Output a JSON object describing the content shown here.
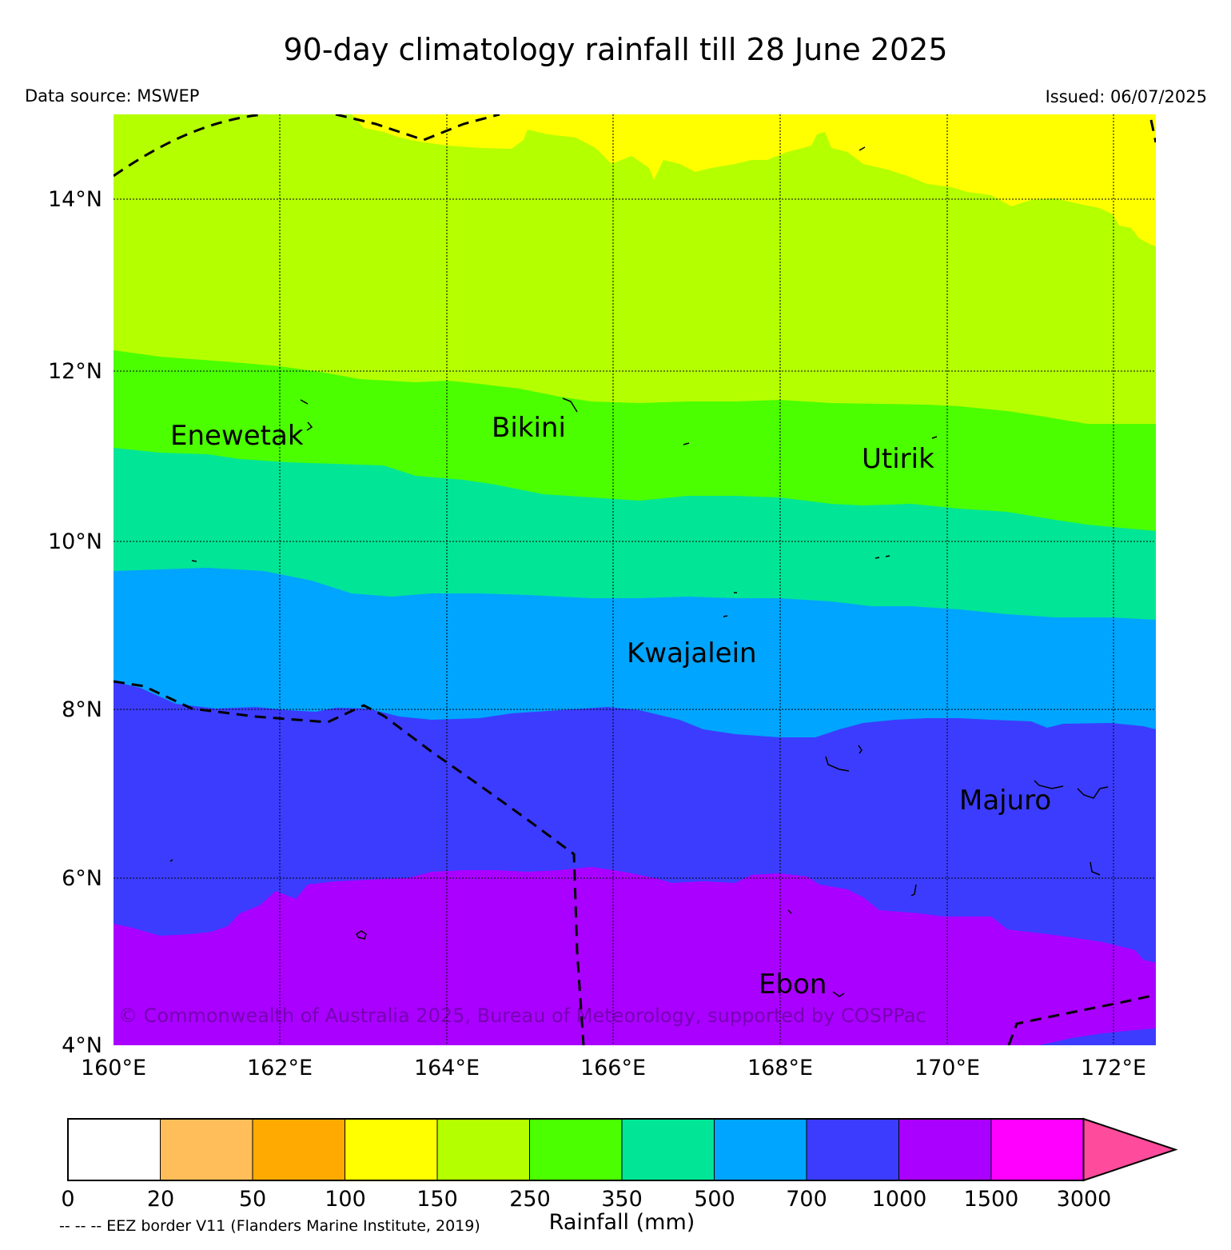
{
  "title": "90-day climatology rainfall till 28 June 2025",
  "data_source": "Data source: MSWEP",
  "issued": "Issued: 06/07/2025",
  "copyright": "© Commonwealth of Australia 2025, Bureau of Meteorology, supported by COSPPac",
  "eez_note": "-- -- -- EEZ border V11 (Flanders Marine Institute, 2019)",
  "lon_ticks": [
    "160°E",
    "162°E",
    "164°E",
    "166°E",
    "168°E",
    "170°E",
    "172°E"
  ],
  "lat_ticks": [
    "14°N",
    "12°N",
    "10°N",
    "8°N",
    "6°N",
    "4°N"
  ],
  "places": {
    "enewetak": "Enewetak",
    "bikini": "Bikini",
    "utirik": "Utirik",
    "kwajalein": "Kwajalein",
    "majuro": "Majuro",
    "ebon": "Ebon"
  },
  "colorbar": {
    "label": "Rainfall (mm)",
    "ticks": [
      "0",
      "20",
      "50",
      "100",
      "150",
      "250",
      "350",
      "500",
      "700",
      "1000",
      "1500",
      "3000"
    ],
    "colors": [
      "#ffffff",
      "#ffbe5a",
      "#ffaa00",
      "#ffff00",
      "#b4ff00",
      "#4bff00",
      "#00e696",
      "#00a5ff",
      "#3c3cff",
      "#aa00ff",
      "#ff00ff"
    ],
    "extend_color": "#ff4b9b"
  },
  "band_colors": {
    "100-150": "#ffff00",
    "150-250": "#b4ff00",
    "250-350": "#4bff00",
    "350-500": "#00e696",
    "500-700": "#00a5ff",
    "700-1000": "#3c3cff",
    "1000-1500": "#aa00ff"
  }
}
